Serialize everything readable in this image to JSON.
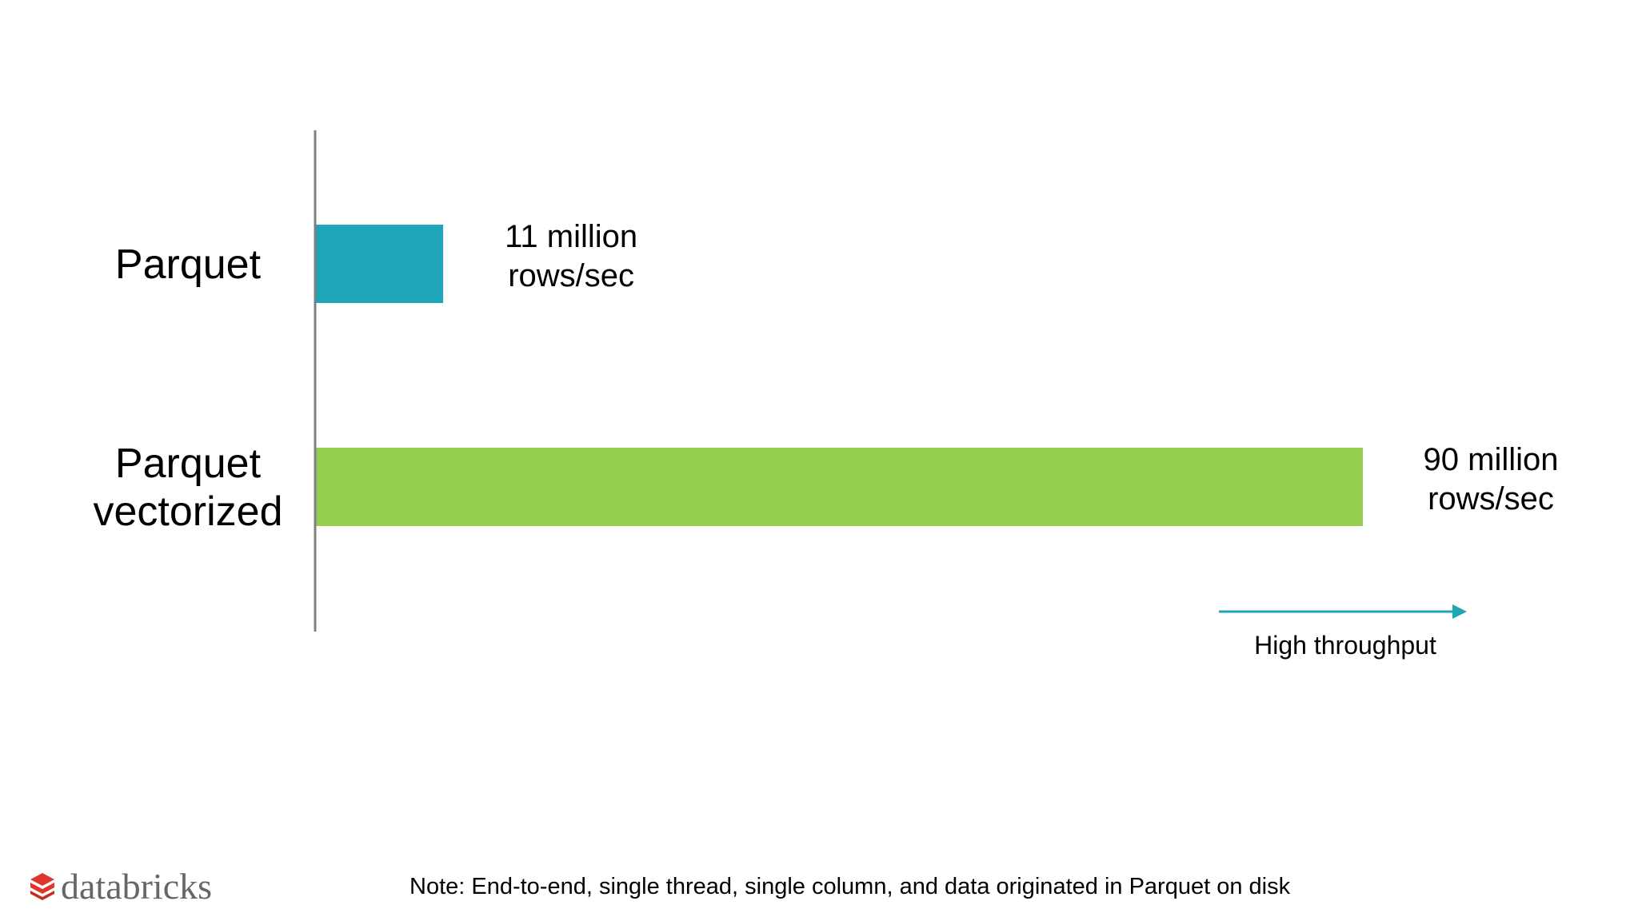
{
  "chart_data": {
    "type": "bar",
    "orientation": "horizontal",
    "categories": [
      [
        "Parquet"
      ],
      [
        "Parquet",
        "vectorized"
      ]
    ],
    "values": [
      11,
      90
    ],
    "value_labels": [
      [
        "11 million",
        "rows/sec"
      ],
      [
        "90 million",
        "rows/sec"
      ]
    ],
    "unit": "million rows/sec",
    "xlim": [
      0,
      90
    ],
    "colors": [
      "#1ea6b8",
      "#94cf4f"
    ],
    "axis_color": "#808080",
    "grid": false,
    "arrow": {
      "label": "High throughput",
      "color": "#1ea6b8",
      "direction": "right"
    }
  },
  "footer": {
    "logo_text": "databricks",
    "logo_color": "#e0352b",
    "note": "Note: End-to-end, single thread, single column, and data originated in Parquet on disk"
  }
}
